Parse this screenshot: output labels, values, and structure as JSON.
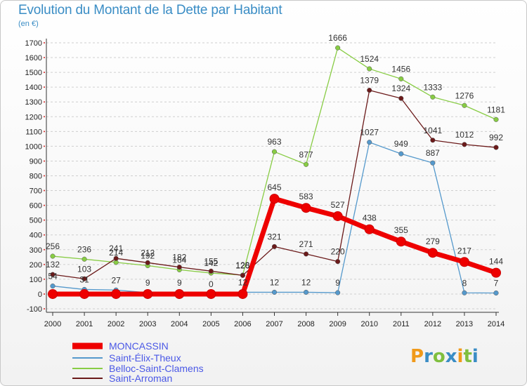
{
  "header": {
    "title": "Evolution du Montant de la Dette par Habitant",
    "unit": "(en €)"
  },
  "logo": {
    "text": "Proxiti"
  },
  "chart_data": {
    "type": "line",
    "title": "Evolution du Montant de la Dette par Habitant",
    "ylabel": "(en €)",
    "xlabel": "",
    "x": [
      "2000",
      "2001",
      "2002",
      "2003",
      "2004",
      "2005",
      "2006",
      "2007",
      "2008",
      "2009",
      "2010",
      "2011",
      "2012",
      "2013",
      "2014"
    ],
    "yticks": [
      -100,
      0,
      100,
      200,
      300,
      400,
      500,
      600,
      700,
      800,
      900,
      1000,
      1100,
      1200,
      1300,
      1400,
      1500,
      1600,
      1700
    ],
    "ylim": [
      -100,
      1700
    ],
    "grid": "horizontal dashed",
    "legend_position": "bottom-left",
    "series": [
      {
        "name": "MONCASSIN",
        "color": "#ee0000",
        "values": [
          0,
          0,
          0,
          0,
          0,
          0,
          0,
          645,
          583,
          527,
          438,
          355,
          279,
          217,
          144
        ]
      },
      {
        "name": "Saint-Élix-Theux",
        "color": "#5599cc",
        "values": [
          54,
          31,
          27,
          9,
          9,
          0,
          12,
          12,
          12,
          9,
          1027,
          949,
          887,
          8,
          7
        ]
      },
      {
        "name": "Belloc-Saint-Clamens",
        "color": "#88cc44",
        "values": [
          256,
          236,
          214,
          192,
          164,
          142,
          128,
          963,
          877,
          1666,
          1524,
          1456,
          1333,
          1276,
          1181
        ]
      },
      {
        "name": "Saint-Arroman",
        "color": "#6b1a1a",
        "values": [
          132,
          103,
          241,
          212,
          182,
          155,
          126,
          321,
          271,
          220,
          1379,
          1324,
          1041,
          1012,
          992
        ]
      }
    ],
    "labels": [
      [
        "",
        "",
        "",
        "",
        "",
        "",
        "",
        "645",
        "583",
        "527",
        "438",
        "355",
        "279",
        "217",
        "144"
      ],
      [
        "54",
        "31",
        "27",
        "9",
        "9",
        "0",
        "12",
        "12",
        "12",
        "9",
        "1027",
        "949",
        "887",
        "8",
        "7"
      ],
      [
        "256",
        "236",
        "214",
        "192",
        "164",
        "142",
        "128",
        "963",
        "877",
        "1666",
        "1524",
        "1456",
        "1333",
        "1276",
        "1181"
      ],
      [
        "132",
        "103",
        "241",
        "212",
        "182",
        "155",
        "126",
        "321",
        "271",
        "220",
        "1379",
        "1324",
        "1041",
        "1012",
        "992"
      ]
    ]
  }
}
